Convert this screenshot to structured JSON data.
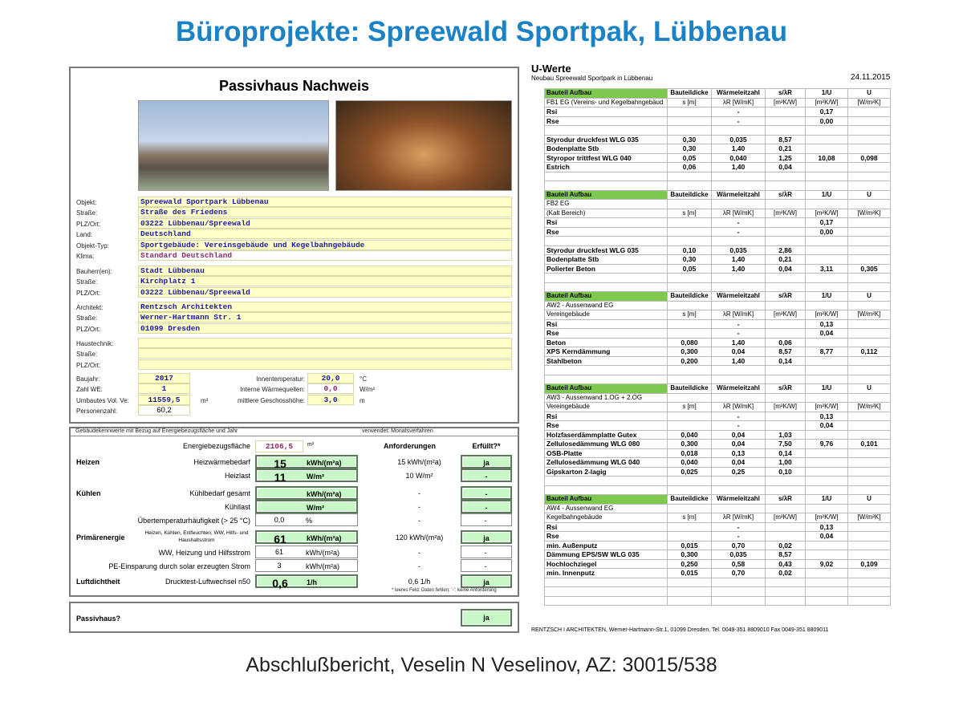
{
  "title": "Büroprojekte: Spreewald Sportpak, Lübbenau",
  "footer": "Abschlußbericht, Veselin N Veselinov, AZ: 30015/538",
  "nachweis": {
    "heading": "Passivhaus Nachweis",
    "object": [
      {
        "label": "Objekt:",
        "value": "Spreewald Sportpark Lübbenau"
      },
      {
        "label": "Straße:",
        "value": "Straße des Friedens"
      },
      {
        "label": "PLZ/Ort:",
        "value": "03222 Lübbenau/Spreewald"
      },
      {
        "label": "Land:",
        "value": "Deutschland"
      },
      {
        "label": "Objekt-Typ:",
        "value": "Sportgebäude: Vereinsgebäude und Kegelbahngebäude"
      },
      {
        "label": "Klima:",
        "value": "Standard Deutschland"
      }
    ],
    "owner": [
      {
        "label": "Bauherr(en):",
        "value": "Stadt Lübbenau"
      },
      {
        "label": "Straße:",
        "value": "Kirchplatz 1"
      },
      {
        "label": "PLZ/Ort:",
        "value": "03222 Lübbenau/Spreewald"
      }
    ],
    "architect": [
      {
        "label": "Architekt:",
        "value": "Rentzsch Architekten"
      },
      {
        "label": "Straße:",
        "value": "Werner-Hartmann Str. 1"
      },
      {
        "label": "PLZ/Ort:",
        "value": "01099 Dresden"
      }
    ],
    "tech": [
      {
        "label": "Haustechnik:",
        "value": ""
      },
      {
        "label": "Straße:",
        "value": ""
      },
      {
        "label": "PLZ/Ort:",
        "value": ""
      }
    ],
    "params_left": [
      {
        "label": "Baujahr:",
        "value": "2017",
        "unit": ""
      },
      {
        "label": "Zahl WE:",
        "value": "1",
        "unit": ""
      },
      {
        "label": "Umbautes Vol. Ve:",
        "value": "11559,5",
        "unit": "m³"
      },
      {
        "label": "Personenzahl:",
        "value": "60,2",
        "unit": ""
      }
    ],
    "params_right": [
      {
        "label": "Innentemperatur:",
        "value": "20,0",
        "unit": "°C"
      },
      {
        "label": "Interne Wärmequellen:",
        "value": "0,0",
        "unit": "W/m²"
      },
      {
        "label": "mittlere Geschosshöhe:",
        "value": "3,0",
        "unit": "m"
      }
    ]
  },
  "energy": {
    "caption": "Gebäudekennwerte mit Bezug auf Energiebezugsfläche und Jahr",
    "method": "verwendet: Monatsverfahren",
    "ebf_label": "Energiebezugsfläche",
    "ebf_value": "2106,5",
    "ebf_unit": "m²",
    "col_req": "Anforderungen",
    "col_ok": "Erfüllt?*",
    "rows": [
      {
        "group": "Heizen",
        "label": "Heizwärmebedarf",
        "value": "15",
        "unit": "kWh/(m²a)",
        "req": "15 kWh/(m²a)",
        "ok": "ja",
        "green": true
      },
      {
        "group": "",
        "label": "Heizlast",
        "value": "11",
        "unit": "W/m²",
        "req": "10 W/m²",
        "ok": "-",
        "green": true
      },
      {
        "group": "Kühlen",
        "label": "Kühlbedarf gesamt",
        "value": "",
        "unit": "kWh/(m²a)",
        "req": "-",
        "ok": "-",
        "green": true
      },
      {
        "group": "",
        "label": "Kühllast",
        "value": "",
        "unit": "W/m²",
        "req": "-",
        "ok": "-",
        "green": true
      },
      {
        "group": "",
        "label": "Übertemperaturhäufigkeit (> 25 °C)",
        "value": "0,0",
        "unit": "%",
        "req": "-",
        "ok": "-",
        "green": false
      },
      {
        "group": "Primärenergie",
        "label": "Heizen, Kühlen, Entfeuchten, WW, Hilfs- und Haushaltsstrom",
        "value": "61",
        "unit": "kWh/(m²a)",
        "req": "120 kWh/(m²a)",
        "ok": "ja",
        "green": true
      },
      {
        "group": "",
        "label": "WW, Heizung und Hilfsstrom",
        "value": "61",
        "unit": "kWh/(m²a)",
        "req": "-",
        "ok": "-",
        "green": false
      },
      {
        "group": "",
        "label": "PE-Einsparung durch solar erzeugten Strom",
        "value": "3",
        "unit": "kWh/(m²a)",
        "req": "-",
        "ok": "-",
        "green": false
      },
      {
        "group": "Luftdichtheit",
        "label": "Drucktest-Luftwechsel n50",
        "value": "0,6",
        "unit": "1/h",
        "req": "0,6 1/h",
        "ok": "ja",
        "green": true
      }
    ],
    "footnote": "* leeres Feld: Daten fehlen; '-': keine Anforderung",
    "passivhaus_label": "Passivhaus?",
    "passivhaus_value": "ja"
  },
  "uwerte": {
    "title": "U-Werte",
    "subtitle": "Neubau Spreewald Sportpark in Lübbenau",
    "date": "24.11.2015",
    "header": [
      "Bauteil Aufbau",
      "Bauteildicke",
      "Wärmeleitzahl",
      "s/λR",
      "1/U",
      "U"
    ],
    "units": [
      "s [m]",
      "λR [W/mK]",
      "[m²K/W]",
      "[m²K/W]",
      "[W/m²K]"
    ],
    "blocks": [
      {
        "name": [
          "FB1 EG (Vereins- und Kegelbahngebäud"
        ],
        "rsi": "0,17",
        "rse": "0,00",
        "gap": true,
        "layers": [
          [
            "Styrodur druckfest WLG 035",
            "0,30",
            "0,035",
            "8,57",
            "",
            ""
          ],
          [
            "Bodenplatte Stb",
            "0,30",
            "1,40",
            "0,21",
            "",
            ""
          ],
          [
            "Styropor trittfest WLG 040",
            "0,05",
            "0,040",
            "1,25",
            "10,08",
            "0,098"
          ],
          [
            "Estrich",
            "0,06",
            "1,40",
            "0,04",
            "",
            ""
          ]
        ]
      },
      {
        "name": [
          "FB2 EG",
          "(Kalt Bereich)"
        ],
        "rsi": "0,17",
        "rse": "0,00",
        "gap": true,
        "layers": [
          [
            "Styrodur druckfest WLG 035",
            "0,10",
            "0,035",
            "2,86",
            "",
            ""
          ],
          [
            "Bodenplatte Stb",
            "0,30",
            "1,40",
            "0,21",
            "",
            ""
          ],
          [
            "Polierter Beton",
            "0,05",
            "1,40",
            "0,04",
            "3,11",
            "0,305"
          ]
        ]
      },
      {
        "name": [
          "AW2 - Aussenwand EG",
          "Vereingebäude"
        ],
        "rsi": "0,13",
        "rse": "0,04",
        "gap": false,
        "layers": [
          [
            "Beton",
            "0,080",
            "1,40",
            "0,06",
            "",
            ""
          ],
          [
            "XPS Kerndämmung",
            "0,300",
            "0,04",
            "8,57",
            "8,77",
            "0,112"
          ],
          [
            "Stahlbeton",
            "0,200",
            "1,40",
            "0,14",
            "",
            ""
          ]
        ]
      },
      {
        "name": [
          "AW3 - Aussenwand 1.OG + 2.OG",
          "Vereingebäude"
        ],
        "rsi": "0,13",
        "rse": "0,04",
        "gap": false,
        "layers": [
          [
            "Holzfaserdämmplatte Gutex",
            "0,040",
            "0,04",
            "1,03",
            "",
            ""
          ],
          [
            "Zellulosedämmung WLG 080",
            "0,300",
            "0,04",
            "7,50",
            "9,76",
            "0,101"
          ],
          [
            "OSB-Platte",
            "0,018",
            "0,13",
            "0,14",
            "",
            ""
          ],
          [
            "Zellulosedämmung WLG 040",
            "0,040",
            "0,04",
            "1,00",
            "",
            ""
          ],
          [
            "Gipskarton 2-lagig",
            "0,025",
            "0,25",
            "0,10",
            "",
            ""
          ]
        ]
      },
      {
        "name": [
          "AW4 - Aussenwand EG",
          "Kegelbahngebäude"
        ],
        "rsi": "0,13",
        "rse": "0,04",
        "gap": false,
        "layers": [
          [
            "min. Außenputz",
            "0,015",
            "0,70",
            "0,02",
            "",
            ""
          ],
          [
            "Dämmung EPS/SW WLG 035",
            "0,300",
            "0,035",
            "8,57",
            "",
            ""
          ],
          [
            "Hochlochziegel",
            "0,250",
            "0,58",
            "0,43",
            "9,02",
            "0,109"
          ],
          [
            "min. Innenputz",
            "0,015",
            "0,70",
            "0,02",
            "",
            ""
          ]
        ]
      }
    ],
    "footer": "RENTZSCH I ARCHITEKTEN,  Werner-Hartmann-Str.1, 01099 Dresden, Tel. 0049-351 8809010 Fax 0049-351 8809011"
  },
  "colors": {
    "title": "#1b82c5",
    "field": "#ffffc8",
    "green": "#c8f8c8",
    "header_green": "#7ec850"
  }
}
